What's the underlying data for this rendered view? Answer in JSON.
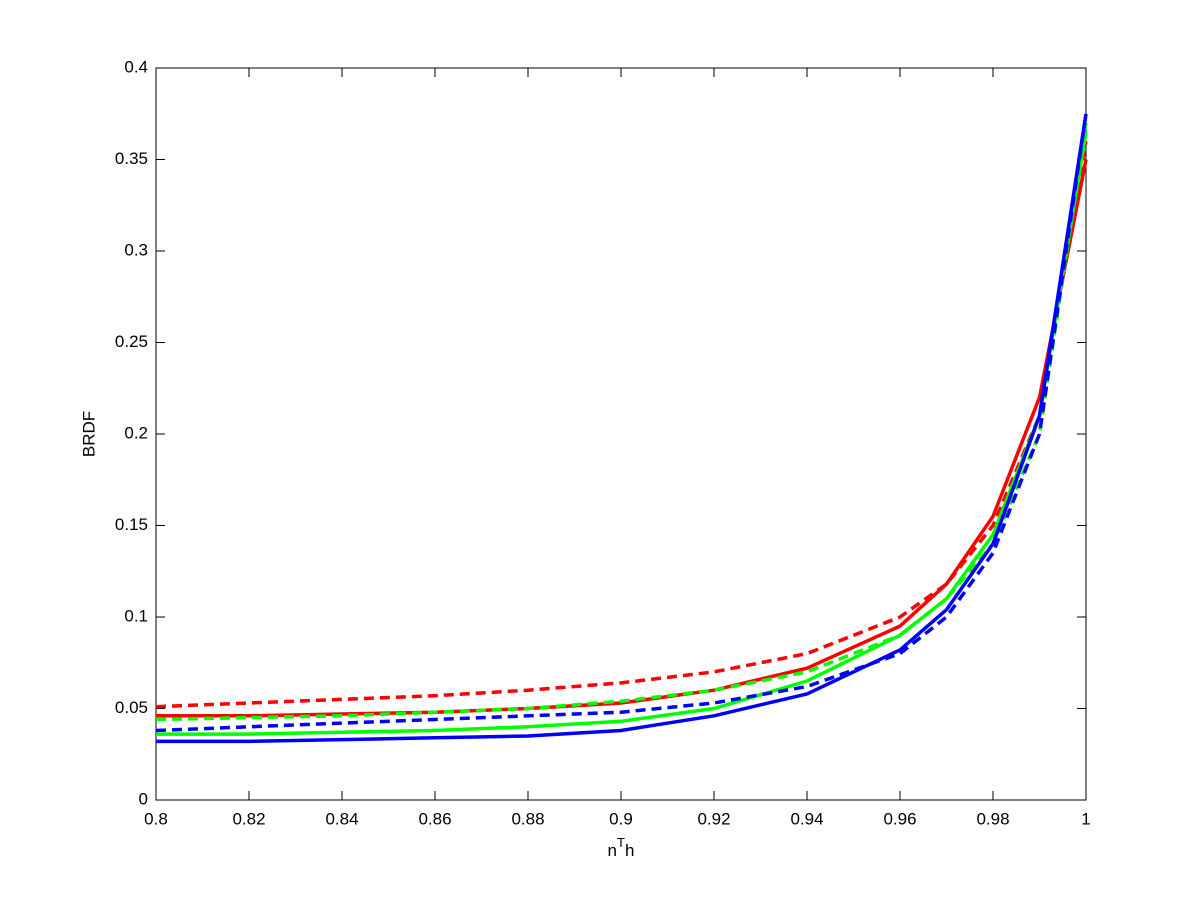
{
  "chart_data": {
    "type": "line",
    "x_label": [
      "n",
      "T",
      "h"
    ],
    "y_label": "BRDF",
    "x": [
      0.8,
      0.82,
      0.84,
      0.86,
      0.88,
      0.9,
      0.92,
      0.94,
      0.96,
      0.97,
      0.98,
      0.99,
      1
    ],
    "series": [
      {
        "color": "#ff0000",
        "style": "solid",
        "values": [
          0.046,
          0.046,
          0.047,
          0.048,
          0.05,
          0.053,
          0.06,
          0.072,
          0.095,
          0.118,
          0.155,
          0.22,
          0.35
        ]
      },
      {
        "color": "#ff0000",
        "style": "dashed",
        "values": [
          0.051,
          0.053,
          0.055,
          0.057,
          0.06,
          0.064,
          0.07,
          0.08,
          0.1,
          0.118,
          0.15,
          0.21,
          0.36
        ]
      },
      {
        "color": "#00ff00",
        "style": "solid",
        "values": [
          0.036,
          0.036,
          0.037,
          0.038,
          0.04,
          0.043,
          0.05,
          0.065,
          0.09,
          0.11,
          0.145,
          0.21,
          0.365
        ]
      },
      {
        "color": "#00ff00",
        "style": "dashed",
        "values": [
          0.044,
          0.045,
          0.046,
          0.048,
          0.05,
          0.054,
          0.06,
          0.07,
          0.09,
          0.11,
          0.14,
          0.2,
          0.37
        ]
      },
      {
        "color": "#0000ff",
        "style": "solid",
        "values": [
          0.032,
          0.032,
          0.033,
          0.034,
          0.035,
          0.038,
          0.046,
          0.058,
          0.082,
          0.104,
          0.14,
          0.21,
          0.375
        ]
      },
      {
        "color": "#0000ff",
        "style": "dashed",
        "values": [
          0.038,
          0.04,
          0.042,
          0.044,
          0.046,
          0.048,
          0.053,
          0.062,
          0.08,
          0.1,
          0.135,
          0.2,
          0.375
        ]
      }
    ],
    "xlim": [
      0.8,
      1
    ],
    "xticks": [
      0.8,
      0.82,
      0.84,
      0.86,
      0.88,
      0.9,
      0.92,
      0.94,
      0.96,
      0.98,
      1
    ],
    "ylim": [
      0,
      0.4
    ],
    "yticks": [
      0,
      0.05,
      0.1,
      0.15,
      0.2,
      0.25,
      0.3,
      0.35,
      0.4
    ],
    "grid": false
  }
}
